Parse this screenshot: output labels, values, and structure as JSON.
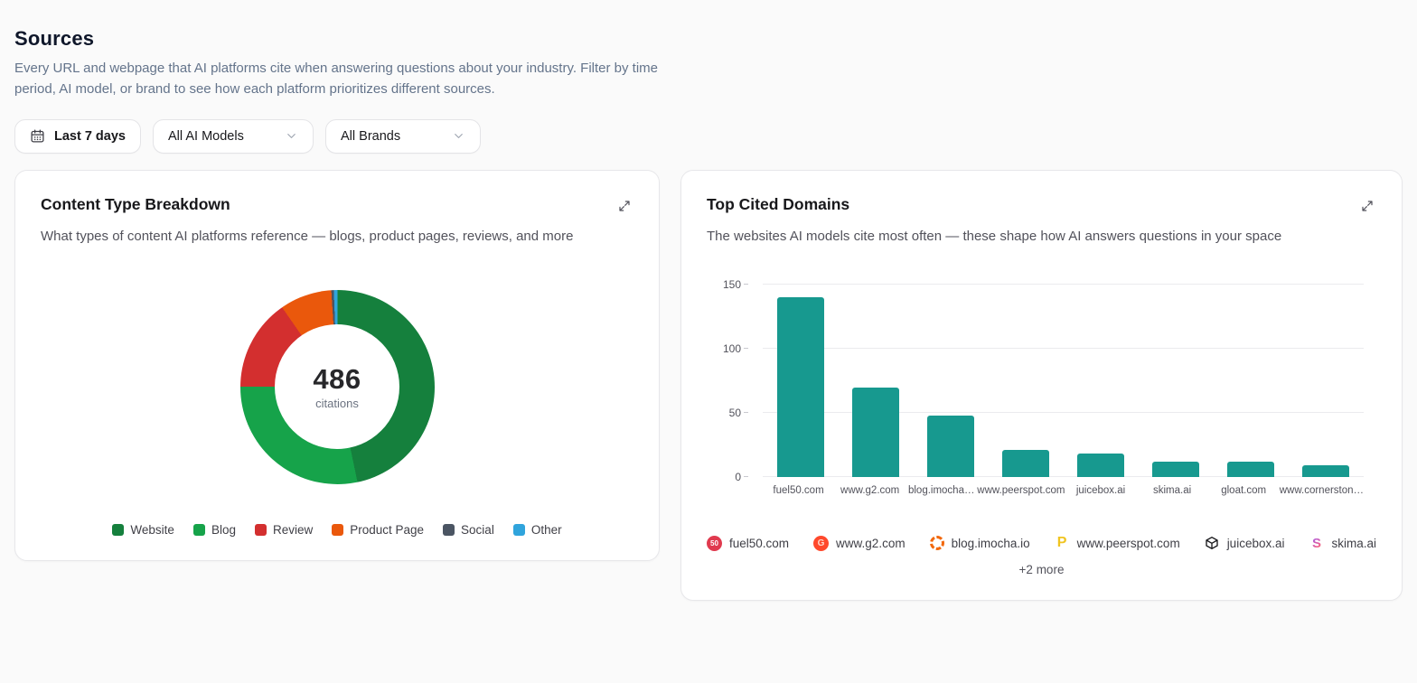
{
  "page": {
    "title": "Sources",
    "description": "Every URL and webpage that AI platforms cite when answering questions about your industry. Filter by time period, AI model, or brand to see how each platform prioritizes different sources."
  },
  "filters": {
    "date_range": {
      "label": "Last 7 days",
      "icon": "calendar-icon"
    },
    "ai_model": {
      "value": "All AI Models",
      "icon": "chevron-down-icon"
    },
    "brand": {
      "value": "All Brands",
      "icon": "chevron-down-icon"
    }
  },
  "content_type_card": {
    "title": "Content Type Breakdown",
    "subtitle": "What types of content AI platforms reference — blogs, product pages, reviews, and more",
    "expand_icon": "expand-icon"
  },
  "top_domains_card": {
    "title": "Top Cited Domains",
    "subtitle": "The websites AI models cite most often — these shape how AI answers questions in your space",
    "expand_icon": "expand-icon",
    "more_label": "+2 more"
  },
  "chart_data": [
    {
      "type": "pie",
      "title": "Content Type Breakdown",
      "donut": true,
      "center_value": "486",
      "center_label": "citations",
      "total": 486,
      "legend_position": "bottom",
      "segments": [
        {
          "label": "Website",
          "value": 227,
          "color": "#15803d"
        },
        {
          "label": "Blog",
          "value": 138,
          "color": "#16a34a"
        },
        {
          "label": "Review",
          "value": 74,
          "color": "#d32f2f"
        },
        {
          "label": "Product Page",
          "value": 42,
          "color": "#ea580c"
        },
        {
          "label": "Social",
          "value": 2,
          "color": "#4b5563"
        },
        {
          "label": "Other",
          "value": 3,
          "color": "#30a4dc"
        }
      ]
    },
    {
      "type": "bar",
      "title": "Top Cited Domains",
      "categories": [
        "fuel50.com",
        "www.g2.com",
        "blog.imocha…",
        "www.peerspot.com",
        "juicebox.ai",
        "skima.ai",
        "gloat.com",
        "www.cornerston…"
      ],
      "values": [
        140,
        70,
        48,
        21,
        18,
        12,
        12,
        9
      ],
      "bar_color": "#17998f",
      "xlabel": "",
      "ylabel": "",
      "ylim": [
        0,
        150
      ],
      "yticks": [
        0,
        50,
        100,
        150
      ],
      "grid": true
    }
  ],
  "domain_legend": [
    {
      "domain": "fuel50.com",
      "icon": "fuel50-favicon",
      "glyph": "50"
    },
    {
      "domain": "www.g2.com",
      "icon": "g2-favicon",
      "glyph": "G"
    },
    {
      "domain": "blog.imocha.io",
      "icon": "imocha-favicon",
      "glyph": ""
    },
    {
      "domain": "www.peerspot.com",
      "icon": "peerspot-favicon",
      "glyph": "P"
    },
    {
      "domain": "juicebox.ai",
      "icon": "juicebox-favicon",
      "glyph": ""
    },
    {
      "domain": "skima.ai",
      "icon": "skima-favicon",
      "glyph": "S"
    }
  ]
}
